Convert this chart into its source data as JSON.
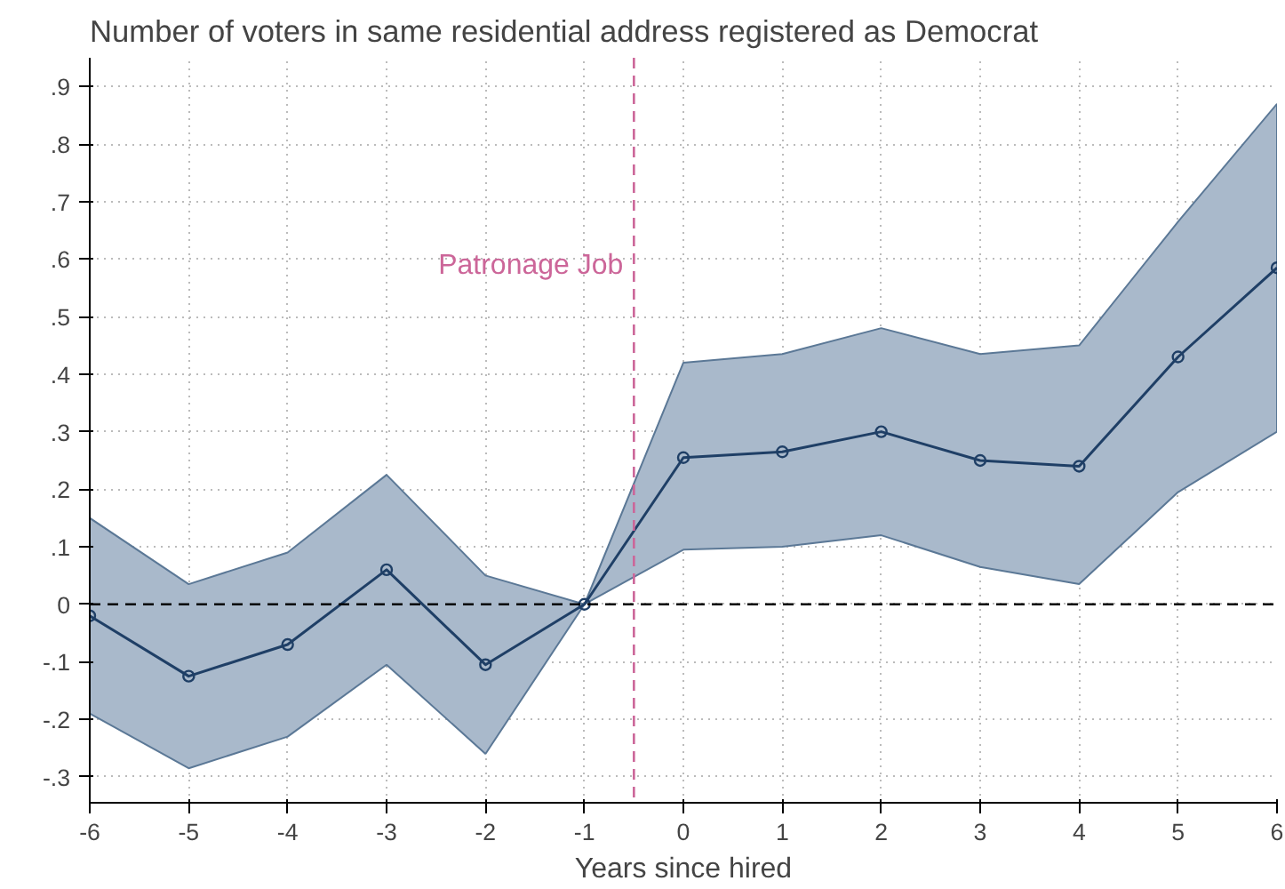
{
  "chart_data": {
    "type": "line",
    "title": "Number of voters in same residential address registered as Democrat",
    "xlabel": "Years since hired",
    "x": [
      -6,
      -5,
      -4,
      -3,
      -2,
      -1,
      0,
      1,
      2,
      3,
      4,
      5,
      6
    ],
    "series": [
      {
        "color": "#1f3f66",
        "values": [
          -0.02,
          -0.125,
          -0.07,
          0.06,
          -0.105,
          0,
          0.255,
          0.265,
          0.3,
          0.25,
          0.24,
          0.43,
          0.585
        ],
        "lower": [
          -0.19,
          -0.285,
          -0.23,
          -0.105,
          -0.26,
          0,
          0.095,
          0.1,
          0.12,
          0.065,
          0.035,
          0.195,
          0.3
        ],
        "upper": [
          0.15,
          0.035,
          0.09,
          0.225,
          0.05,
          0,
          0.42,
          0.435,
          0.48,
          0.435,
          0.45,
          0.665,
          0.87
        ]
      }
    ],
    "xlim": [
      -6,
      6
    ],
    "xticks": [
      -6,
      -5,
      -4,
      -3,
      -2,
      -1,
      0,
      1,
      2,
      3,
      4,
      5,
      6
    ],
    "ylim": [
      -0.345,
      0.95
    ],
    "yticks": [
      {
        "value": -0.3,
        "label": "-.3"
      },
      {
        "value": -0.2,
        "label": "-.2"
      },
      {
        "value": -0.1,
        "label": "-.1"
      },
      0,
      {
        "value": 0.1,
        "label": ".1"
      },
      {
        "value": 0.2,
        "label": ".2"
      },
      {
        "value": 0.3,
        "label": ".3"
      },
      {
        "value": 0.4,
        "label": ".4"
      },
      {
        "value": 0.5,
        "label": ".5"
      },
      {
        "value": 0.6,
        "label": ".6"
      },
      {
        "value": 0.7,
        "label": ".7"
      },
      {
        "value": 0.8,
        "label": ".8"
      },
      {
        "value": 0.9,
        "label": ".9"
      }
    ],
    "ref_lines": [
      {
        "axis": "y",
        "value": 0,
        "color": "#000000",
        "line_style": "dashed"
      },
      {
        "axis": "x",
        "value": -0.5,
        "label": "Patronage Job",
        "color": "#cc6699",
        "line_style": "dashed"
      }
    ],
    "grid": true,
    "marker": "circle",
    "line_style": "solid"
  }
}
